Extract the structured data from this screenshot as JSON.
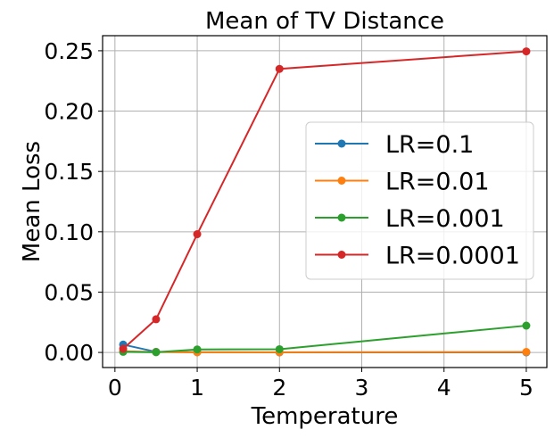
{
  "chart_data": {
    "type": "line",
    "title": "Mean of TV Distance",
    "xlabel": "Temperature",
    "ylabel": "Mean Loss",
    "xlim": [
      -0.15,
      5.25
    ],
    "ylim": [
      -0.0125,
      0.2625
    ],
    "xticks": [
      0,
      1,
      2,
      3,
      4,
      5
    ],
    "xtick_labels": [
      "0",
      "1",
      "2",
      "3",
      "4",
      "5"
    ],
    "yticks": [
      0.0,
      0.05,
      0.1,
      0.15,
      0.2,
      0.25
    ],
    "ytick_labels": [
      "0.00",
      "0.05",
      "0.10",
      "0.15",
      "0.20",
      "0.25"
    ],
    "grid": true,
    "legend_position": "center-right",
    "x": [
      0.1,
      0.5,
      1,
      2,
      5
    ],
    "series": [
      {
        "name": "LR=0.1",
        "color": "#1f77b4",
        "values": [
          0.0065,
          0.0005,
          0.0002,
          0.0001,
          0.0001
        ]
      },
      {
        "name": "LR=0.01",
        "color": "#ff7f0e",
        "values": [
          0.001,
          0.0003,
          0.0002,
          0.0002,
          0.0004
        ]
      },
      {
        "name": "LR=0.001",
        "color": "#2ca02c",
        "values": [
          0.0005,
          0.0002,
          0.0025,
          0.0027,
          0.0222
        ]
      },
      {
        "name": "LR=0.0001",
        "color": "#d62728",
        "values": [
          0.003,
          0.0275,
          0.098,
          0.235,
          0.2495
        ]
      }
    ]
  }
}
